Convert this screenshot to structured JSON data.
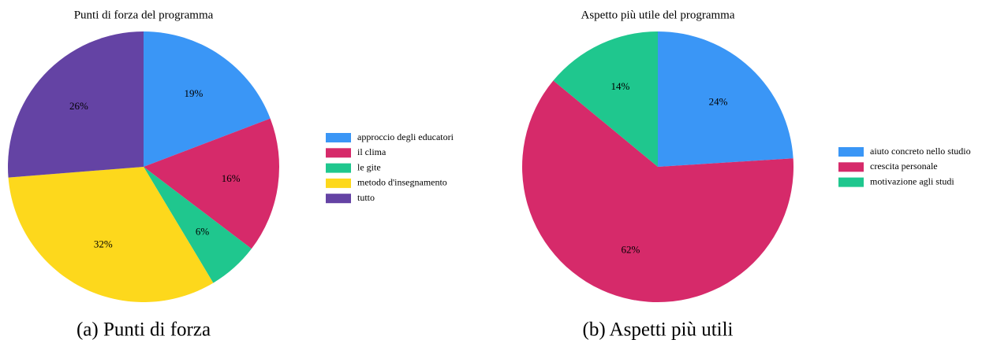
{
  "chart_data": [
    {
      "type": "pie",
      "title": "Punti di forza del programma",
      "caption": "(a) Punti di forza",
      "categories": [
        "approccio degli educatori",
        "il clima",
        "le gite",
        "metodo d'insegnamento",
        "tutto"
      ],
      "values": [
        19,
        16,
        6,
        32,
        26
      ],
      "value_labels": [
        "19%",
        "16%",
        "6%",
        "32%",
        "26%"
      ],
      "colors": [
        "#3a96f6",
        "#d62a6a",
        "#1fc78e",
        "#fdd81c",
        "#6443a4"
      ],
      "legend": "right"
    },
    {
      "type": "pie",
      "title": "Aspetto più utile del programma",
      "caption": "(b) Aspetti più utili",
      "categories": [
        "aiuto concreto nello studio",
        "crescita personale",
        "motivazione agli studi"
      ],
      "values": [
        24,
        62,
        14
      ],
      "value_labels": [
        "24%",
        "62%",
        "14%"
      ],
      "colors": [
        "#3a96f6",
        "#d62a6a",
        "#1fc78e"
      ],
      "legend": "right"
    }
  ]
}
